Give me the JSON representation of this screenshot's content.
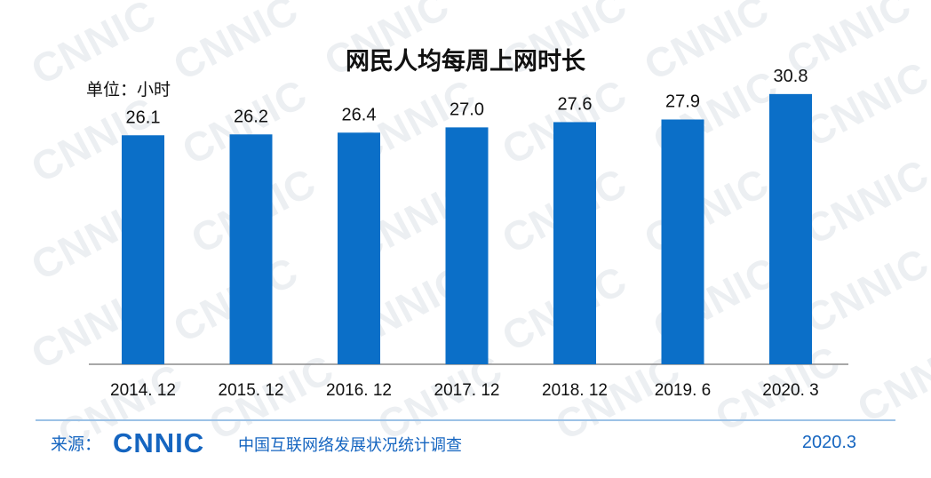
{
  "chart_data": {
    "type": "bar",
    "title": "网民人均每周上网时长",
    "unit_label": "单位：小时",
    "categories": [
      "2014. 12",
      "2015. 12",
      "2016. 12",
      "2017. 12",
      "2018. 12",
      "2019. 6",
      "2020. 3"
    ],
    "values": [
      26.1,
      26.2,
      26.4,
      27.0,
      27.6,
      27.9,
      30.8
    ],
    "value_labels": [
      "26.1",
      "26.2",
      "26.4",
      "27.0",
      "27.6",
      "27.9",
      "30.8"
    ],
    "ylim": [
      0,
      32
    ],
    "bar_color": "#0b6fc8",
    "grid": false,
    "legend": "none"
  },
  "watermark": "CNNIC",
  "footer": {
    "source_label": "来源：",
    "logo": "CNNIC",
    "survey_name": "中国互联网络发展状况统计调查",
    "date": "2020.3"
  },
  "colors": {
    "accent": "#1565c0",
    "divider": "#9cc2e6",
    "watermark": "#eceff2"
  }
}
